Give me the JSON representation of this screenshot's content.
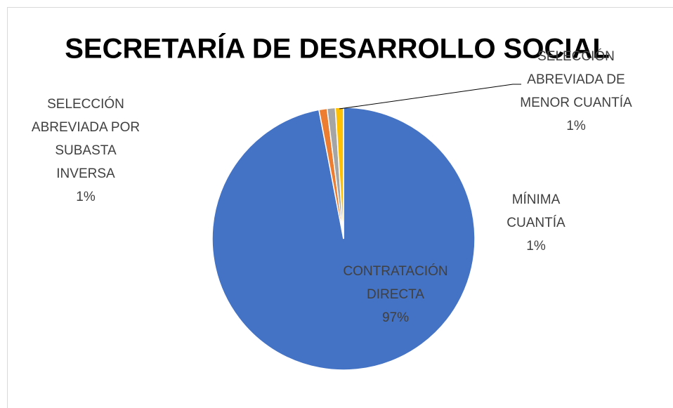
{
  "chart_data": {
    "type": "pie",
    "title": "SECRETARÍA DE DESARROLLO SOCIAL",
    "categories": [
      "CONTRATACIÓN DIRECTA",
      "SELECCIÓN ABREVIADA POR SUBASTA INVERSA",
      "MÍNIMA CUANTÍA",
      "SELECCIÓN ABREVIADA DE MENOR CUANTÍA"
    ],
    "values": [
      97,
      1,
      1,
      1
    ],
    "value_labels": [
      "97%",
      "1%",
      "1%",
      "1%"
    ],
    "colors": [
      "#4472c4",
      "#ed7d31",
      "#a5a5a5",
      "#ffc000"
    ]
  }
}
